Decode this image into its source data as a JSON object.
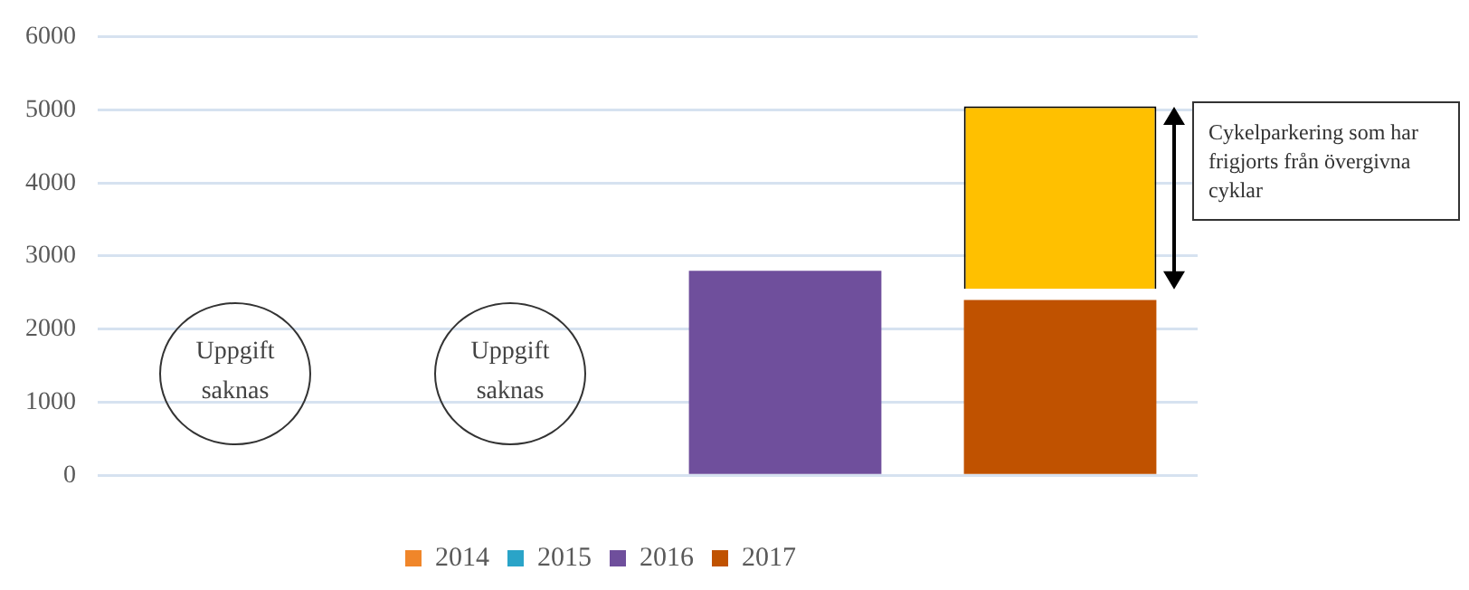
{
  "chart_data": {
    "type": "bar",
    "categories": [
      null,
      null,
      null,
      null
    ],
    "series": [
      {
        "name": "2014",
        "color": "#f0862a",
        "values": [
          null,
          null,
          null,
          null
        ]
      },
      {
        "name": "2015",
        "color": "#2aa4c8",
        "values": [
          null,
          null,
          null,
          null
        ]
      },
      {
        "name": "2016",
        "color": "#6f4f9c",
        "values": [
          null,
          null,
          2800,
          null
        ]
      },
      {
        "name": "2017",
        "color": "#c05200",
        "values": [
          null,
          null,
          null,
          2400
        ]
      },
      {
        "color": "#ffc000",
        "values": [
          null,
          null,
          null,
          2500
        ],
        "base": [
          null,
          null,
          null,
          2550
        ]
      }
    ],
    "ylim": [
      0,
      6000
    ],
    "yticks": [
      0,
      1000,
      2000,
      3000,
      4000,
      5000,
      6000
    ],
    "grid": "y",
    "legend": "bottom",
    "annotations": [
      "Uppgift saknas",
      "Uppgift saknas",
      "Cykelparkering som har frigjorts från övergivna cyklar"
    ]
  }
}
